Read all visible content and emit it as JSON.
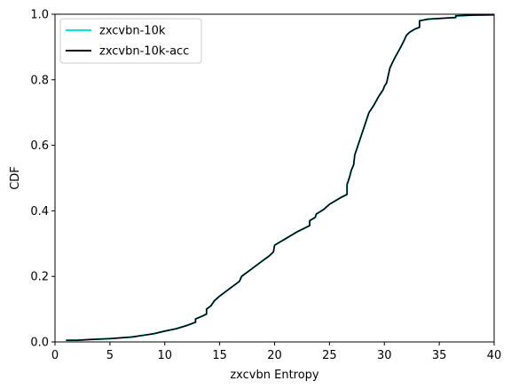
{
  "chart_data": {
    "type": "line",
    "xlabel": "zxcvbn Entropy",
    "ylabel": "CDF",
    "xlim": [
      0,
      40
    ],
    "ylim": [
      0,
      1
    ],
    "xticks": [
      "0",
      "5",
      "10",
      "15",
      "20",
      "25",
      "30",
      "35",
      "40"
    ],
    "yticks": [
      "0.0",
      "0.2",
      "0.4",
      "0.6",
      "0.8",
      "1.0"
    ],
    "grid": false,
    "legend_position": "top-left",
    "series": [
      {
        "name": "zxcvbn-10k",
        "color": "#00e5e5",
        "x": [
          1,
          2,
          3,
          5,
          7,
          8,
          9,
          10,
          11,
          12,
          12.8,
          12.8,
          13.5,
          13.8,
          13.8,
          14.2,
          14.5,
          15,
          16,
          16.8,
          17,
          18,
          19,
          19.5,
          19.9,
          20,
          20.5,
          21,
          22,
          23.2,
          23.2,
          23.7,
          23.8,
          24.5,
          25,
          25.5,
          26,
          26.6,
          26.6,
          26.8,
          27.0,
          27.2,
          27.3,
          27.6,
          28,
          28.3,
          28.6,
          29,
          29.5,
          29.9,
          30,
          30.2,
          30.4,
          30.5,
          30.7,
          31,
          31.5,
          31.8,
          32,
          32.3,
          32.8,
          33.2,
          33.2,
          34,
          36.5,
          36.5,
          38,
          40
        ],
        "y": [
          0.005,
          0.005,
          0.007,
          0.01,
          0.015,
          0.02,
          0.025,
          0.033,
          0.04,
          0.05,
          0.06,
          0.07,
          0.08,
          0.085,
          0.1,
          0.11,
          0.125,
          0.14,
          0.165,
          0.185,
          0.2,
          0.225,
          0.25,
          0.262,
          0.275,
          0.295,
          0.305,
          0.315,
          0.335,
          0.355,
          0.37,
          0.38,
          0.39,
          0.405,
          0.42,
          0.43,
          0.44,
          0.45,
          0.48,
          0.5,
          0.525,
          0.54,
          0.57,
          0.6,
          0.64,
          0.67,
          0.7,
          0.72,
          0.75,
          0.77,
          0.78,
          0.79,
          0.82,
          0.835,
          0.85,
          0.87,
          0.9,
          0.92,
          0.935,
          0.945,
          0.955,
          0.96,
          0.98,
          0.985,
          0.99,
          0.995,
          0.997,
          0.998
        ]
      },
      {
        "name": "zxcvbn-10k-acc",
        "color": "#000000",
        "x": [
          1,
          2,
          3,
          5,
          7,
          8,
          9,
          10,
          11,
          12,
          12.8,
          12.8,
          13.5,
          13.8,
          13.8,
          14.2,
          14.5,
          15,
          16,
          16.8,
          17,
          18,
          19,
          19.5,
          19.9,
          20,
          20.5,
          21,
          22,
          23.2,
          23.2,
          23.7,
          23.8,
          24.5,
          25,
          25.5,
          26,
          26.6,
          26.6,
          26.8,
          27.0,
          27.2,
          27.3,
          27.6,
          28,
          28.3,
          28.6,
          29,
          29.5,
          29.9,
          30,
          30.2,
          30.4,
          30.5,
          30.7,
          31,
          31.5,
          31.8,
          32,
          32.3,
          32.8,
          33.2,
          33.2,
          34,
          36.5,
          36.5,
          38,
          40
        ],
        "y": [
          0.005,
          0.005,
          0.007,
          0.01,
          0.015,
          0.02,
          0.025,
          0.033,
          0.04,
          0.05,
          0.06,
          0.07,
          0.08,
          0.085,
          0.1,
          0.11,
          0.125,
          0.14,
          0.165,
          0.185,
          0.2,
          0.225,
          0.25,
          0.262,
          0.275,
          0.295,
          0.305,
          0.315,
          0.335,
          0.355,
          0.37,
          0.38,
          0.39,
          0.405,
          0.42,
          0.43,
          0.44,
          0.45,
          0.48,
          0.5,
          0.525,
          0.54,
          0.57,
          0.6,
          0.64,
          0.67,
          0.7,
          0.72,
          0.75,
          0.77,
          0.78,
          0.79,
          0.82,
          0.835,
          0.85,
          0.87,
          0.9,
          0.92,
          0.935,
          0.945,
          0.955,
          0.96,
          0.98,
          0.985,
          0.99,
          0.995,
          0.997,
          0.998
        ]
      }
    ]
  }
}
